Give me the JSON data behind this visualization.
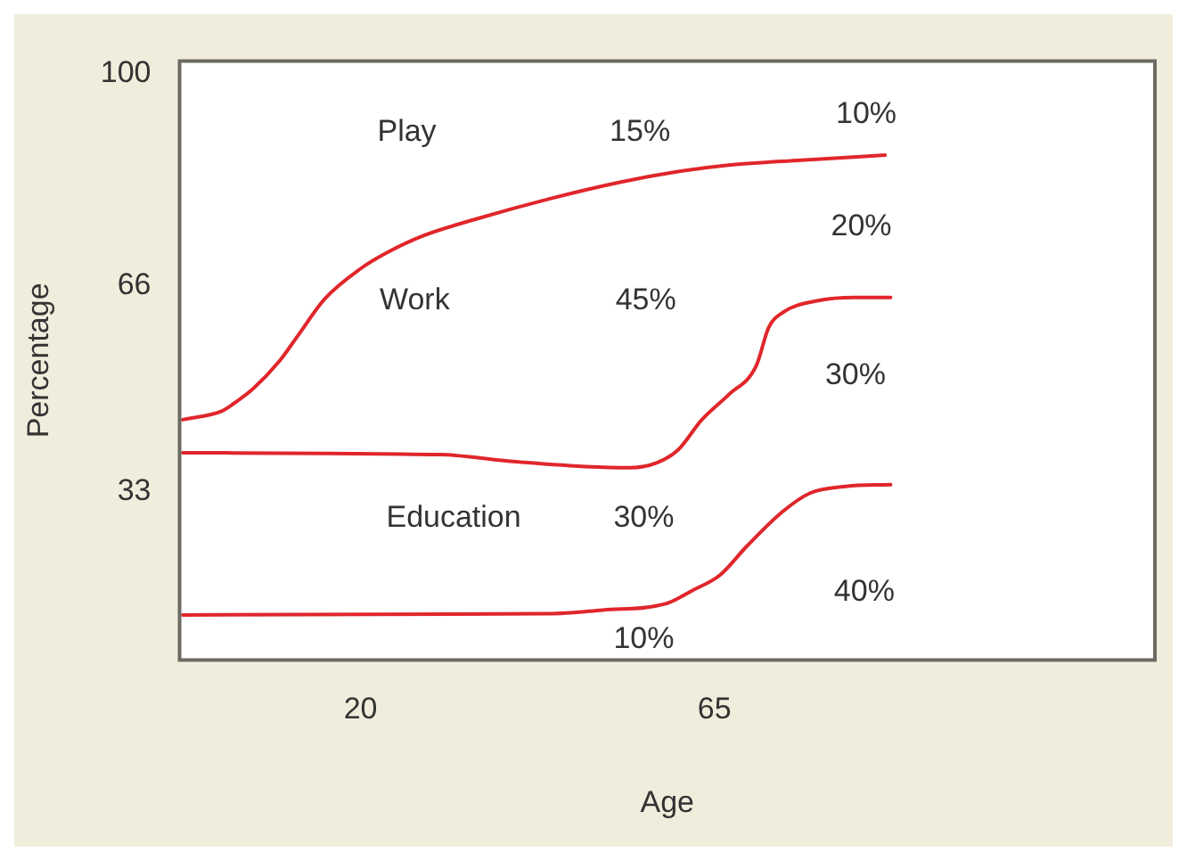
{
  "chart_data": {
    "type": "line",
    "xlabel": "Age",
    "ylabel": "Percentage",
    "xlim": [
      -3,
      121
    ],
    "xticks": [
      20,
      65
    ],
    "ylim": [
      6,
      102
    ],
    "yticks": [
      33,
      66,
      100
    ],
    "grid": false,
    "legend": false,
    "marker": "none",
    "line_style": "solid",
    "series": [
      {
        "color": "#e0262b",
        "x": [
          -2.6,
          2.4,
          4.0,
          6.3,
          9.7,
          12.0,
          15.4,
          20,
          23.4,
          28,
          34.8,
          44,
          53.1,
          60,
          66.8,
          76,
          86.7
        ],
        "values": [
          44.5,
          45.9,
          47.2,
          49.4,
          53.9,
          57.9,
          63.8,
          68.7,
          71.3,
          74.0,
          76.7,
          79.9,
          82.6,
          84.2,
          85.3,
          86.1,
          86.9
        ]
      },
      {
        "color": "#e0262b",
        "x": [
          -2.6,
          30.3,
          39.4,
          48.6,
          54.3,
          57.7,
          60.4,
          63.4,
          66.8,
          70.3,
          71.9,
          73.7,
          78.2,
          82.8,
          87.4
        ],
        "values": [
          39.2,
          38.9,
          37.8,
          37.0,
          36.8,
          37.6,
          39.7,
          44.5,
          48.5,
          53.1,
          59.3,
          61.7,
          63.6,
          64.1,
          64.1
        ]
      },
      {
        "color": "#e0262b",
        "x": [
          -2.6,
          44.0,
          50.8,
          58.8,
          62.3,
          65.7,
          69.1,
          73.7,
          77.1,
          81.7,
          87.4
        ],
        "values": [
          13.2,
          13.4,
          14.0,
          15.0,
          17.2,
          19.6,
          24.2,
          29.8,
          32.7,
          33.8,
          34.1
        ]
      }
    ],
    "annotations": [
      "Play",
      "15%",
      "10%",
      "20%",
      "Work",
      "45%",
      "30%",
      "Education",
      "30%",
      "40%",
      "10%"
    ]
  }
}
